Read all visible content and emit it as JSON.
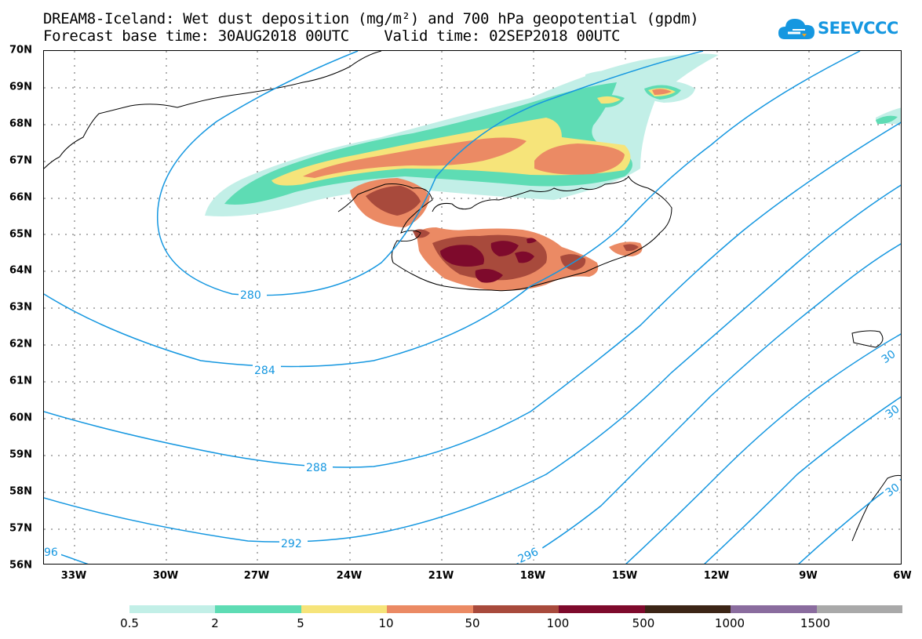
{
  "header": {
    "title_line1": "DREAM8-Iceland: Wet dust deposition (mg/m²) and 700 hPa geopotential (gpdm)",
    "title_line2": "Forecast base time: 30AUG2018 00UTC    Valid time: 02SEP2018 00UTC"
  },
  "logo": {
    "text": "SEEVCCC",
    "icon": "cloud-icon",
    "color": "#1597e0"
  },
  "axes": {
    "lat_labels": [
      "70N",
      "69N",
      "68N",
      "67N",
      "66N",
      "65N",
      "64N",
      "63N",
      "62N",
      "61N",
      "60N",
      "59N",
      "58N",
      "57N",
      "56N"
    ],
    "lon_labels": [
      "33W",
      "30W",
      "27W",
      "24W",
      "21W",
      "18W",
      "15W",
      "12W",
      "9W",
      "6W"
    ],
    "lat_range": [
      56,
      70
    ],
    "lon_range": [
      -34.5,
      -6
    ]
  },
  "colorbar": {
    "labels": [
      "0.5",
      "2",
      "5",
      "10",
      "50",
      "100",
      "500",
      "1000",
      "1500"
    ],
    "colors": [
      "#c2efe7",
      "#5edcb4",
      "#f6e47a",
      "#eb8a64",
      "#a84a3c",
      "#7e0a2c",
      "#3c2516",
      "#8a6c9e",
      "#a9a9a9"
    ]
  },
  "contours": {
    "color": "#1597e0",
    "labels": [
      "280",
      "284",
      "288",
      "292",
      "296",
      "96",
      "30",
      "30",
      "30"
    ]
  }
}
